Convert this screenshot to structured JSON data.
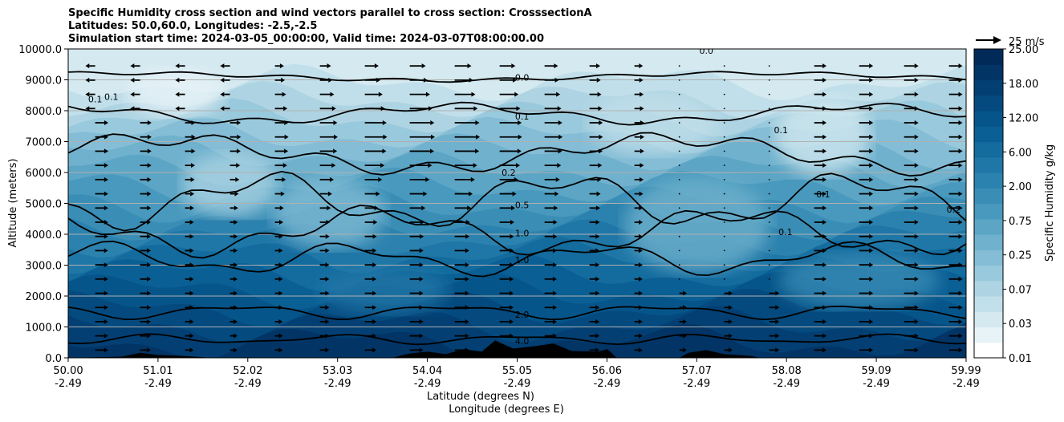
{
  "chart_data": {
    "type": "heatmap",
    "title": [
      "Specific Humidity cross section and wind vectors parallel to cross section: CrosssectionA",
      "Latitudes: 50.0,60.0, Longitudes: -2.5,-2.5",
      "Simulation start time: 2024-03-05_00:00:00, Valid time: 2024-03-07T08:00:00.00"
    ],
    "ylabel": "Altitude (meters)",
    "xlabel_lat": "Latitude (degrees N)",
    "xlabel_lon": "Longitude (degrees E)",
    "ylim": [
      0,
      10000
    ],
    "yticks": [
      "0.0",
      "1000.0",
      "2000.0",
      "3000.0",
      "4000.0",
      "5000.0",
      "6000.0",
      "7000.0",
      "8000.0",
      "9000.0",
      "10000.0"
    ],
    "xlim": [
      50.0,
      59.99
    ],
    "xticks_lat": [
      "50.00",
      "51.01",
      "52.02",
      "53.03",
      "54.04",
      "55.05",
      "56.06",
      "57.07",
      "58.08",
      "59.09",
      "59.99"
    ],
    "xticks_lon": [
      "-2.49",
      "-2.49",
      "-2.49",
      "-2.49",
      "-2.49",
      "-2.49",
      "-2.49",
      "-2.49",
      "-2.49",
      "-2.49",
      "-2.49"
    ],
    "grid": "horizontal",
    "colorbar": {
      "label": "Specific Humidity g/kg",
      "ticks": [
        "0.01",
        "0.03",
        "0.07",
        "0.25",
        "0.75",
        "2.00",
        "6.00",
        "12.00",
        "18.00",
        "25.00"
      ],
      "colors": [
        "#ffffff",
        "#e8f3f7",
        "#d4e9f0",
        "#c1dfea",
        "#aed4e3",
        "#99c9dc",
        "#84bdd5",
        "#70b1cd",
        "#5ca5c5",
        "#4899bd",
        "#3a8eb6",
        "#2c82ae",
        "#1f77a7",
        "#136b9e",
        "#0a5f94",
        "#06558a",
        "#044a7f",
        "#033f73",
        "#023466",
        "#012a59"
      ]
    },
    "contour_labels": [
      {
        "text": "0.0",
        "lat": 55.05,
        "alt": 9080
      },
      {
        "text": "0.1",
        "lat": 55.05,
        "alt": 7820
      },
      {
        "text": "0.2",
        "lat": 54.9,
        "alt": 6000
      },
      {
        "text": "0.5",
        "lat": 55.05,
        "alt": 4950
      },
      {
        "text": "1.0",
        "lat": 55.05,
        "alt": 4040
      },
      {
        "text": "1.0",
        "lat": 55.05,
        "alt": 3170
      },
      {
        "text": "2.0",
        "lat": 55.05,
        "alt": 1400
      },
      {
        "text": "4.0",
        "lat": 55.05,
        "alt": 540
      },
      {
        "text": "0.1",
        "lat": 50.3,
        "alt": 8380
      },
      {
        "text": "0.1",
        "lat": 50.48,
        "alt": 8450
      },
      {
        "text": "0.1",
        "lat": 57.93,
        "alt": 7380
      },
      {
        "text": "0.1",
        "lat": 58.4,
        "alt": 5300
      },
      {
        "text": "0.1",
        "lat": 57.98,
        "alt": 4080
      },
      {
        "text": "0.2",
        "lat": 59.85,
        "alt": 4800
      },
      {
        "text": "0.0",
        "lat": 57.1,
        "alt": 9950
      }
    ],
    "wind_reference": {
      "label": "25 m/s",
      "speed": 25
    },
    "terrain": [
      {
        "lat": 50.0,
        "alt": 0
      },
      {
        "lat": 50.6,
        "alt": 40
      },
      {
        "lat": 50.8,
        "alt": 160
      },
      {
        "lat": 51.0,
        "alt": 90
      },
      {
        "lat": 51.3,
        "alt": 60
      },
      {
        "lat": 51.6,
        "alt": 0
      },
      {
        "lat": 53.6,
        "alt": 0
      },
      {
        "lat": 53.8,
        "alt": 140
      },
      {
        "lat": 54.0,
        "alt": 200
      },
      {
        "lat": 54.2,
        "alt": 120
      },
      {
        "lat": 54.4,
        "alt": 280
      },
      {
        "lat": 54.6,
        "alt": 200
      },
      {
        "lat": 54.75,
        "alt": 560
      },
      {
        "lat": 54.95,
        "alt": 300
      },
      {
        "lat": 55.2,
        "alt": 380
      },
      {
        "lat": 55.4,
        "alt": 460
      },
      {
        "lat": 55.6,
        "alt": 220
      },
      {
        "lat": 55.9,
        "alt": 200
      },
      {
        "lat": 56.0,
        "alt": 280
      },
      {
        "lat": 56.1,
        "alt": 0
      },
      {
        "lat": 56.8,
        "alt": 0
      },
      {
        "lat": 56.9,
        "alt": 160
      },
      {
        "lat": 57.1,
        "alt": 250
      },
      {
        "lat": 57.3,
        "alt": 120
      },
      {
        "lat": 57.6,
        "alt": 60
      },
      {
        "lat": 57.7,
        "alt": 0
      },
      {
        "lat": 59.99,
        "alt": 0
      }
    ]
  }
}
